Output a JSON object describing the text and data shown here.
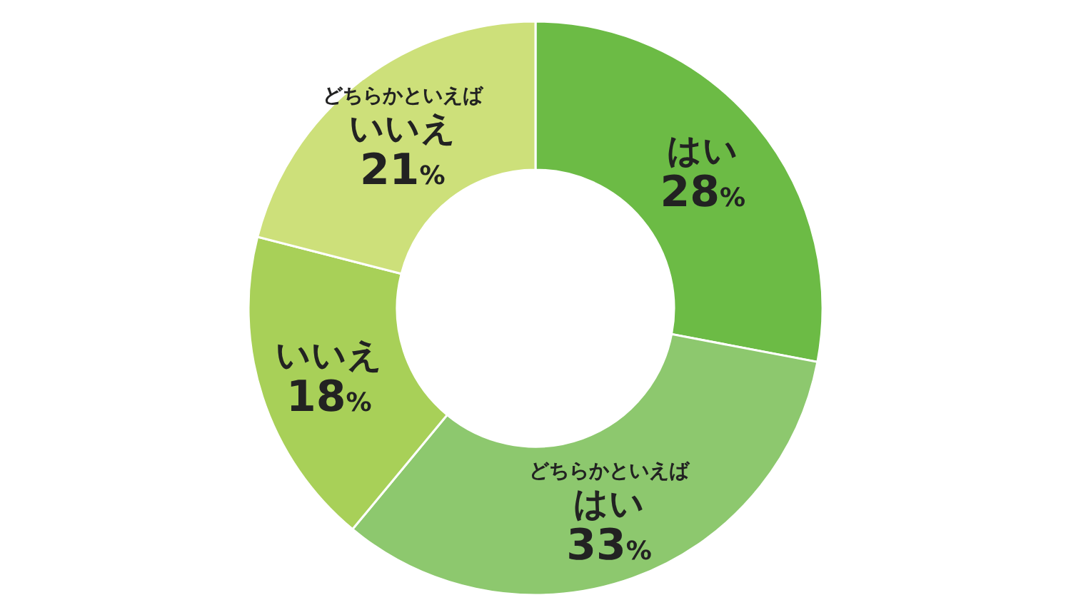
{
  "chart_data": {
    "type": "donut",
    "categories": [
      "はい",
      "どちらかといえばはい",
      "いいえ",
      "どちらかといえばいいえ"
    ],
    "values": [
      28,
      33,
      18,
      21
    ],
    "value_labels": [
      "28%",
      "33%",
      "18%",
      "21%"
    ],
    "colors": [
      "#6cbb45",
      "#8dc86e",
      "#a8d058",
      "#cde07a"
    ]
  }
}
